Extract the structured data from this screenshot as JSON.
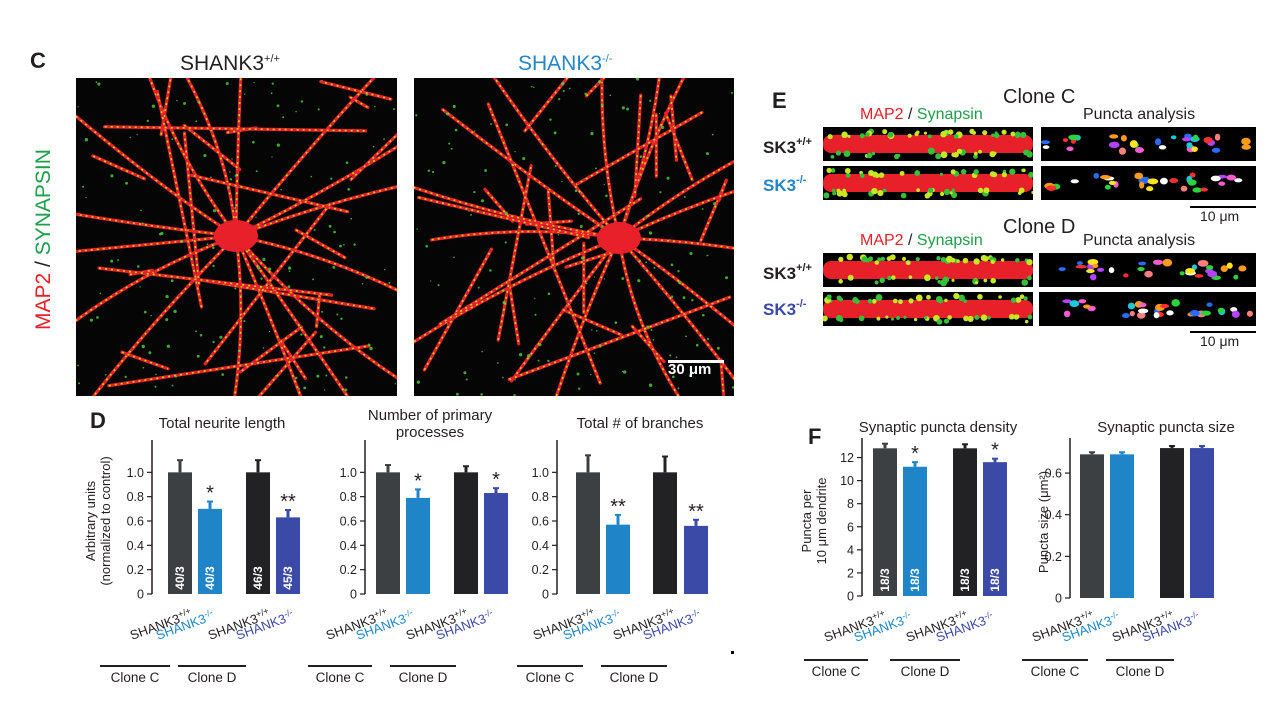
{
  "panel_c": {
    "letter": "C",
    "side_label_red": "MAP2",
    "side_label_sep": " / ",
    "side_label_green": "SYNAPSIN",
    "left_title": "SHANK3+/+",
    "right_title": "SHANK3-/-",
    "scale_bar": "30 μm",
    "colors": {
      "red": "#e8202a",
      "green": "#1d9e4a",
      "blue": "#2585c7"
    }
  },
  "panel_e": {
    "letter": "E",
    "clone_c_title": "Clone C",
    "clone_d_title": "Clone D",
    "col_map2": "MAP2",
    "col_sep": " / ",
    "col_syn": "Synapsin",
    "col_puncta": "Puncta analysis",
    "row_wt": "SK3+/+",
    "row_ko": "SK3-/-",
    "scale_bar": "10 μm"
  },
  "panel_d_letter": "D",
  "panel_f_letter": "F",
  "chart_data": [
    {
      "type": "bar",
      "panel": "D",
      "title": "Total neurite length",
      "ylabel": "Arbitrary units\n(normalized to control)",
      "ylim": [
        0,
        1.2
      ],
      "yticks": [
        "0",
        "0.2",
        "0.4",
        "0.6",
        "0.8",
        "1.0"
      ],
      "ytick_values": [
        0,
        0.2,
        0.4,
        0.6,
        0.8,
        1.0
      ],
      "categories": [
        "SHANK3+/+",
        "SHANK3-/-",
        "SHANK3+/+",
        "SHANK3-/-"
      ],
      "groups": [
        "Clone C",
        "Clone D"
      ],
      "values": [
        1.0,
        0.7,
        1.0,
        0.63
      ],
      "errors": [
        0.1,
        0.06,
        0.1,
        0.06
      ],
      "colors": [
        "#3d4043",
        "#1f85c8",
        "#222224",
        "#3a4aa6"
      ],
      "signif": [
        "",
        "*",
        "",
        "**"
      ],
      "n_labels": [
        "40/3",
        "40/3",
        "46/3",
        "45/3"
      ]
    },
    {
      "type": "bar",
      "panel": "D",
      "title": "Number of primary\nprocesses",
      "ylim": [
        0,
        1.2
      ],
      "yticks": [
        "0",
        "0.2",
        "0.4",
        "0.6",
        "0.8",
        "1.0"
      ],
      "ytick_values": [
        0,
        0.2,
        0.4,
        0.6,
        0.8,
        1.0
      ],
      "categories": [
        "SHANK3+/+",
        "SHANK3-/-",
        "SHANK3+/+",
        "SHANK3-/-"
      ],
      "groups": [
        "Clone C",
        "Clone D"
      ],
      "values": [
        1.0,
        0.79,
        1.0,
        0.83
      ],
      "errors": [
        0.06,
        0.07,
        0.05,
        0.04
      ],
      "colors": [
        "#3d4043",
        "#1f85c8",
        "#222224",
        "#3a4aa6"
      ],
      "signif": [
        "",
        "*",
        "",
        "*"
      ],
      "n_labels": [
        "",
        "",
        "",
        ""
      ]
    },
    {
      "type": "bar",
      "panel": "D",
      "title": "Total # of branches",
      "ylim": [
        0,
        1.2
      ],
      "yticks": [
        "0",
        "0.2",
        "0.4",
        "0.6",
        "0.8",
        "1.0"
      ],
      "ytick_values": [
        0,
        0.2,
        0.4,
        0.6,
        0.8,
        1.0
      ],
      "categories": [
        "SHANK3+/+",
        "SHANK3-/-",
        "SHANK3+/+",
        "SHANK3-/-"
      ],
      "groups": [
        "Clone C",
        "Clone D"
      ],
      "values": [
        1.0,
        0.57,
        1.0,
        0.56
      ],
      "errors": [
        0.14,
        0.08,
        0.13,
        0.05
      ],
      "colors": [
        "#3d4043",
        "#1f85c8",
        "#222224",
        "#3a4aa6"
      ],
      "signif": [
        "",
        "**",
        "",
        "**"
      ],
      "n_labels": [
        "",
        "",
        "",
        ""
      ]
    },
    {
      "type": "bar",
      "panel": "F",
      "title": "Synaptic puncta density",
      "ylabel": "Puncta per\n10 μm dendrite",
      "ylim": [
        0,
        13
      ],
      "yticks": [
        "0",
        "2",
        "4",
        "6",
        "8",
        "10",
        "12"
      ],
      "ytick_values": [
        0,
        2,
        4,
        6,
        8,
        10,
        12
      ],
      "categories": [
        "SHANK3+/+",
        "SHANK3-/-",
        "SHANK3+/+",
        "SHANK3-/-"
      ],
      "groups": [
        "Clone C",
        "Clone D"
      ],
      "values": [
        12.8,
        11.2,
        12.8,
        11.6
      ],
      "errors": [
        0.4,
        0.4,
        0.35,
        0.3
      ],
      "colors": [
        "#3d4043",
        "#1f85c8",
        "#222224",
        "#3a4aa6"
      ],
      "signif": [
        "",
        "*",
        "",
        "*"
      ],
      "n_labels": [
        "18/3",
        "18/3",
        "18/3",
        "18/3"
      ]
    },
    {
      "type": "bar",
      "panel": "F",
      "title": "Synaptic puncta size",
      "ylabel": "Puncta size (μm²)",
      "ylim": [
        0,
        0.73
      ],
      "yticks": [
        "0",
        "0.2",
        "0.4",
        "0.6"
      ],
      "ytick_values": [
        0,
        0.2,
        0.4,
        0.6
      ],
      "categories": [
        "SHANK3+/+",
        "SHANK3-/-",
        "SHANK3+/+",
        "SHANK3-/-"
      ],
      "groups": [
        "Clone C",
        "Clone D"
      ],
      "values": [
        0.69,
        0.69,
        0.72,
        0.72
      ],
      "errors": [
        0.01,
        0.01,
        0.01,
        0.01
      ],
      "colors": [
        "#3d4043",
        "#1f85c8",
        "#222224",
        "#3a4aa6"
      ],
      "signif": [
        "",
        "",
        "",
        ""
      ],
      "n_labels": [
        "",
        "",
        "",
        ""
      ]
    }
  ]
}
